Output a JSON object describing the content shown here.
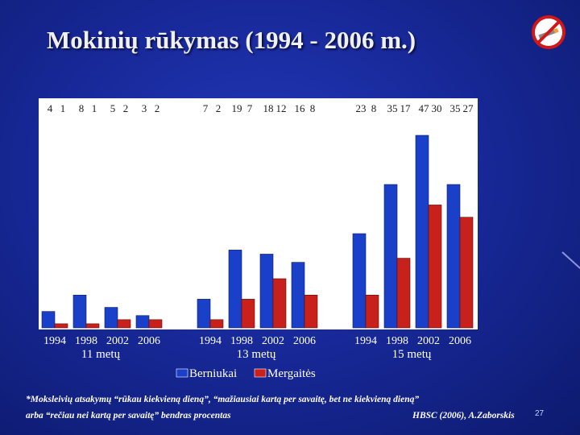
{
  "slide": {
    "title": "Mokinių rūkymas (1994 - 2006 m.)",
    "icon": "no-smoking-icon",
    "number": "27",
    "footnote_line1": "*Moksleivių atsakymų “rūkau kiekvieną dieną”, “mažiausiai kartą per savaitę, bet ne kiekvieną dieną”",
    "footnote_line2_left": "arba “rečiau nei kartą per savaitę” bendras procentas",
    "footnote_line2_right": "HBSC (2006), A.Zaborskis"
  },
  "chart_data": {
    "type": "bar",
    "title": "",
    "xlabel": "",
    "ylabel": "",
    "ylim": [
      0,
      50
    ],
    "grid": false,
    "legend_position": "bottom",
    "groups": [
      {
        "label": "11 metų",
        "years": [
          "1994",
          "1998",
          "2002",
          "2006"
        ],
        "boys": [
          4,
          8,
          5,
          3
        ],
        "girls": [
          1,
          1,
          2,
          2
        ]
      },
      {
        "label": "13 metų",
        "years": [
          "1994",
          "1998",
          "2002",
          "2006"
        ],
        "boys": [
          7,
          19,
          18,
          16
        ],
        "girls": [
          2,
          7,
          12,
          8
        ]
      },
      {
        "label": "15 metų",
        "years": [
          "1994",
          "1998",
          "2002",
          "2006"
        ],
        "boys": [
          23,
          35,
          47,
          35
        ],
        "girls": [
          8,
          17,
          30,
          27
        ]
      }
    ],
    "series": [
      {
        "name": "Berniukai",
        "color": "#1a3fc8"
      },
      {
        "name": "Mergaitės",
        "color": "#c8201a"
      }
    ],
    "top_labels": [
      "4",
      "1",
      "8",
      "1",
      "5",
      "2",
      "3",
      "2",
      "7",
      "2",
      "19",
      "7",
      "18",
      "12",
      "16",
      "8",
      "23",
      "8",
      "35",
      "17",
      "47",
      "30",
      "35",
      "27"
    ]
  }
}
